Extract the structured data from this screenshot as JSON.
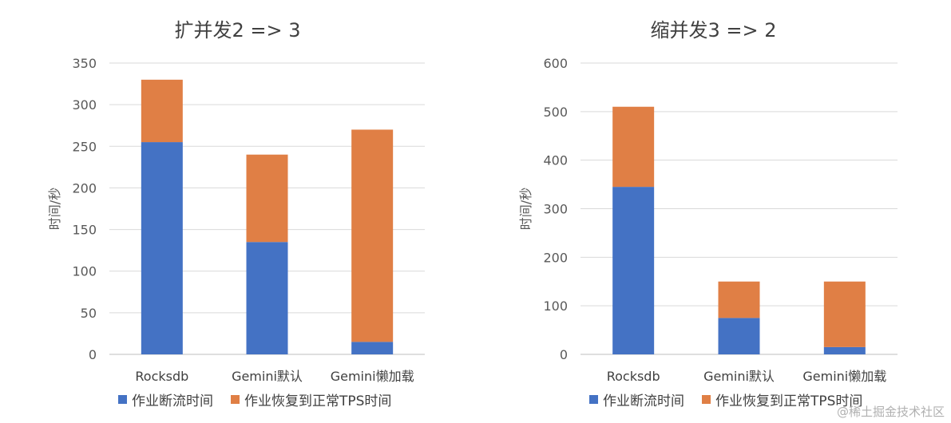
{
  "colors": {
    "series0": "#4472c4",
    "series1": "#e07f45",
    "grid": "#d9d9d9",
    "axis": "#bfbfbf"
  },
  "watermark": "@稀土掘金技术社区",
  "chart_data": [
    {
      "type": "bar",
      "stacked": true,
      "title": "扩并发2 => 3",
      "ylabel": "时间/秒",
      "xlabel": "",
      "ylim": [
        0,
        350
      ],
      "yticks": [
        0,
        50,
        100,
        150,
        200,
        250,
        300,
        350
      ],
      "ytick_labels": [
        "0",
        "50",
        "100",
        "150",
        "200",
        "250",
        "300",
        "350"
      ],
      "categories": [
        "Rocksdb",
        "Gemini默认",
        "Gemini懒加载"
      ],
      "series": [
        {
          "name": "作业断流时间",
          "values": [
            255,
            135,
            15
          ]
        },
        {
          "name": "作业恢复到正常TPS时间",
          "values": [
            75,
            105,
            255
          ]
        }
      ],
      "grid": true,
      "legend": "bottom"
    },
    {
      "type": "bar",
      "stacked": true,
      "title": "缩并发3 => 2",
      "ylabel": "时间/秒",
      "xlabel": "",
      "ylim": [
        0,
        600
      ],
      "yticks": [
        0,
        100,
        200,
        300,
        400,
        500,
        600
      ],
      "ytick_labels": [
        "0",
        "100",
        "200",
        "300",
        "400",
        "500",
        "600"
      ],
      "categories": [
        "Rocksdb",
        "Gemini默认",
        "Gemini懒加载"
      ],
      "series": [
        {
          "name": "作业断流时间",
          "values": [
            345,
            75,
            15
          ]
        },
        {
          "name": "作业恢复到正常TPS时间",
          "values": [
            165,
            75,
            135
          ]
        }
      ],
      "grid": true,
      "legend": "bottom"
    }
  ]
}
